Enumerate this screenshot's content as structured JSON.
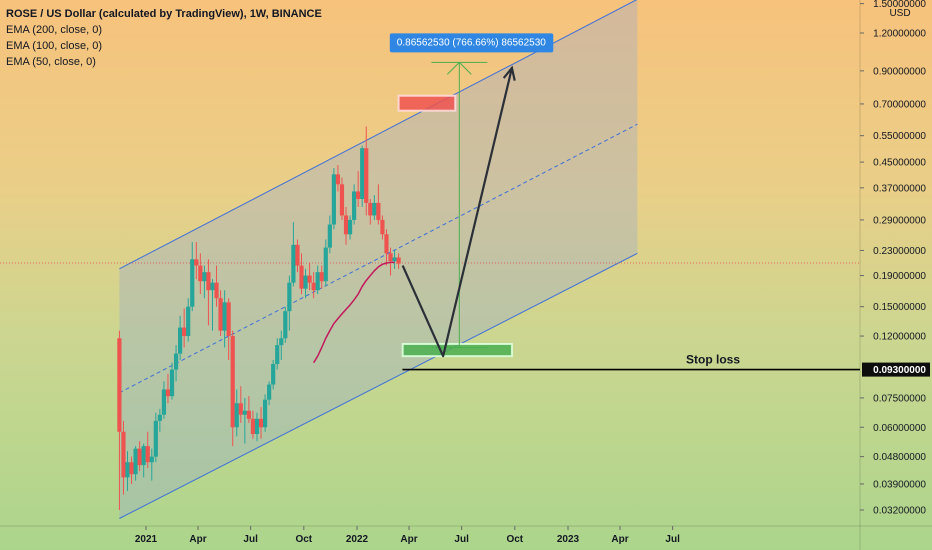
{
  "chart_data": {
    "type": "candlestick",
    "title": "ROSE / US Dollar (calculated by TradingView), 1W, BINANCE",
    "indicators": [
      "EMA (200, close, 0)",
      "EMA (100, close, 0)",
      "EMA (50, close, 0)"
    ],
    "y_unit": "USD",
    "y_scale": "log",
    "y_ticks": [
      {
        "value": 1.5,
        "label": "1.50000000"
      },
      {
        "value": 1.2,
        "label": "1.20000000"
      },
      {
        "value": 0.9,
        "label": "0.90000000"
      },
      {
        "value": 0.7,
        "label": "0.70000000"
      },
      {
        "value": 0.55,
        "label": "0.55000000"
      },
      {
        "value": 0.45,
        "label": "0.45000000"
      },
      {
        "value": 0.37,
        "label": "0.37000000"
      },
      {
        "value": 0.29,
        "label": "0.29000000"
      },
      {
        "value": 0.23,
        "label": "0.23000000"
      },
      {
        "value": 0.19,
        "label": "0.19000000"
      },
      {
        "value": 0.15,
        "label": "0.15000000"
      },
      {
        "value": 0.12,
        "label": "0.12000000"
      },
      {
        "value": 0.075,
        "label": "0.07500000"
      },
      {
        "value": 0.06,
        "label": "0.06000000"
      },
      {
        "value": 0.048,
        "label": "0.04800000"
      },
      {
        "value": 0.039,
        "label": "0.03900000"
      },
      {
        "value": 0.032,
        "label": "0.03200000"
      }
    ],
    "x_ticks": [
      {
        "date": "2021-01-01",
        "label": "2021"
      },
      {
        "date": "2021-04-01",
        "label": "Apr"
      },
      {
        "date": "2021-07-01",
        "label": "Jul"
      },
      {
        "date": "2021-10-01",
        "label": "Oct"
      },
      {
        "date": "2022-01-01",
        "label": "2022"
      },
      {
        "date": "2022-04-01",
        "label": "Apr"
      },
      {
        "date": "2022-07-01",
        "label": "Jul"
      },
      {
        "date": "2022-10-01",
        "label": "Oct"
      },
      {
        "date": "2023-01-01",
        "label": "2023"
      },
      {
        "date": "2023-04-01",
        "label": "Apr"
      },
      {
        "date": "2023-07-01",
        "label": "Jul"
      }
    ],
    "candles": [
      {
        "date": "2020-11-16",
        "o": 0.118,
        "h": 0.125,
        "l": 0.032,
        "c": 0.058
      },
      {
        "date": "2020-11-23",
        "o": 0.058,
        "h": 0.063,
        "l": 0.036,
        "c": 0.041
      },
      {
        "date": "2020-11-30",
        "o": 0.041,
        "h": 0.05,
        "l": 0.037,
        "c": 0.046
      },
      {
        "date": "2020-12-07",
        "o": 0.046,
        "h": 0.048,
        "l": 0.039,
        "c": 0.042
      },
      {
        "date": "2020-12-14",
        "o": 0.042,
        "h": 0.052,
        "l": 0.04,
        "c": 0.051
      },
      {
        "date": "2020-12-21",
        "o": 0.051,
        "h": 0.054,
        "l": 0.043,
        "c": 0.045
      },
      {
        "date": "2020-12-28",
        "o": 0.045,
        "h": 0.053,
        "l": 0.041,
        "c": 0.052
      },
      {
        "date": "2021-01-04",
        "o": 0.052,
        "h": 0.058,
        "l": 0.044,
        "c": 0.046
      },
      {
        "date": "2021-01-11",
        "o": 0.046,
        "h": 0.051,
        "l": 0.04,
        "c": 0.048
      },
      {
        "date": "2021-01-18",
        "o": 0.048,
        "h": 0.067,
        "l": 0.046,
        "c": 0.063
      },
      {
        "date": "2021-01-25",
        "o": 0.063,
        "h": 0.069,
        "l": 0.058,
        "c": 0.066
      },
      {
        "date": "2021-02-01",
        "o": 0.066,
        "h": 0.085,
        "l": 0.064,
        "c": 0.08
      },
      {
        "date": "2021-02-08",
        "o": 0.08,
        "h": 0.09,
        "l": 0.072,
        "c": 0.076
      },
      {
        "date": "2021-02-15",
        "o": 0.076,
        "h": 0.098,
        "l": 0.074,
        "c": 0.093
      },
      {
        "date": "2021-02-22",
        "o": 0.093,
        "h": 0.112,
        "l": 0.085,
        "c": 0.105
      },
      {
        "date": "2021-03-01",
        "o": 0.105,
        "h": 0.14,
        "l": 0.1,
        "c": 0.128
      },
      {
        "date": "2021-03-08",
        "o": 0.128,
        "h": 0.148,
        "l": 0.11,
        "c": 0.12
      },
      {
        "date": "2021-03-15",
        "o": 0.12,
        "h": 0.16,
        "l": 0.115,
        "c": 0.15
      },
      {
        "date": "2021-03-22",
        "o": 0.15,
        "h": 0.245,
        "l": 0.145,
        "c": 0.215
      },
      {
        "date": "2021-03-29",
        "o": 0.215,
        "h": 0.245,
        "l": 0.185,
        "c": 0.205
      },
      {
        "date": "2021-04-05",
        "o": 0.205,
        "h": 0.225,
        "l": 0.165,
        "c": 0.182
      },
      {
        "date": "2021-04-12",
        "o": 0.182,
        "h": 0.205,
        "l": 0.16,
        "c": 0.195
      },
      {
        "date": "2021-04-19",
        "o": 0.195,
        "h": 0.215,
        "l": 0.13,
        "c": 0.17
      },
      {
        "date": "2021-04-26",
        "o": 0.17,
        "h": 0.185,
        "l": 0.125,
        "c": 0.18
      },
      {
        "date": "2021-05-03",
        "o": 0.18,
        "h": 0.205,
        "l": 0.15,
        "c": 0.16
      },
      {
        "date": "2021-05-10",
        "o": 0.16,
        "h": 0.17,
        "l": 0.12,
        "c": 0.125
      },
      {
        "date": "2021-05-17",
        "o": 0.125,
        "h": 0.17,
        "l": 0.11,
        "c": 0.155
      },
      {
        "date": "2021-05-24",
        "o": 0.155,
        "h": 0.16,
        "l": 0.1,
        "c": 0.12
      },
      {
        "date": "2021-05-31",
        "o": 0.12,
        "h": 0.125,
        "l": 0.052,
        "c": 0.06
      },
      {
        "date": "2021-06-07",
        "o": 0.06,
        "h": 0.08,
        "l": 0.056,
        "c": 0.072
      },
      {
        "date": "2021-06-14",
        "o": 0.072,
        "h": 0.082,
        "l": 0.062,
        "c": 0.066
      },
      {
        "date": "2021-06-21",
        "o": 0.066,
        "h": 0.075,
        "l": 0.053,
        "c": 0.068
      },
      {
        "date": "2021-06-28",
        "o": 0.068,
        "h": 0.076,
        "l": 0.062,
        "c": 0.064
      },
      {
        "date": "2021-07-05",
        "o": 0.064,
        "h": 0.068,
        "l": 0.055,
        "c": 0.057
      },
      {
        "date": "2021-07-12",
        "o": 0.057,
        "h": 0.067,
        "l": 0.054,
        "c": 0.064
      },
      {
        "date": "2021-07-19",
        "o": 0.064,
        "h": 0.07,
        "l": 0.055,
        "c": 0.06
      },
      {
        "date": "2021-07-26",
        "o": 0.06,
        "h": 0.077,
        "l": 0.058,
        "c": 0.074
      },
      {
        "date": "2021-08-02",
        "o": 0.074,
        "h": 0.085,
        "l": 0.071,
        "c": 0.083
      },
      {
        "date": "2021-08-09",
        "o": 0.083,
        "h": 0.1,
        "l": 0.08,
        "c": 0.097
      },
      {
        "date": "2021-08-16",
        "o": 0.097,
        "h": 0.118,
        "l": 0.093,
        "c": 0.112
      },
      {
        "date": "2021-08-23",
        "o": 0.112,
        "h": 0.125,
        "l": 0.1,
        "c": 0.118
      },
      {
        "date": "2021-08-30",
        "o": 0.118,
        "h": 0.15,
        "l": 0.114,
        "c": 0.145
      },
      {
        "date": "2021-09-06",
        "o": 0.145,
        "h": 0.19,
        "l": 0.125,
        "c": 0.18
      },
      {
        "date": "2021-09-13",
        "o": 0.18,
        "h": 0.285,
        "l": 0.175,
        "c": 0.24
      },
      {
        "date": "2021-09-20",
        "o": 0.24,
        "h": 0.25,
        "l": 0.195,
        "c": 0.205
      },
      {
        "date": "2021-09-27",
        "o": 0.205,
        "h": 0.225,
        "l": 0.165,
        "c": 0.172
      },
      {
        "date": "2021-10-04",
        "o": 0.172,
        "h": 0.2,
        "l": 0.16,
        "c": 0.19
      },
      {
        "date": "2021-10-11",
        "o": 0.19,
        "h": 0.21,
        "l": 0.17,
        "c": 0.18
      },
      {
        "date": "2021-10-18",
        "o": 0.18,
        "h": 0.195,
        "l": 0.16,
        "c": 0.17
      },
      {
        "date": "2021-10-25",
        "o": 0.17,
        "h": 0.205,
        "l": 0.165,
        "c": 0.195
      },
      {
        "date": "2021-11-01",
        "o": 0.195,
        "h": 0.205,
        "l": 0.172,
        "c": 0.182
      },
      {
        "date": "2021-11-08",
        "o": 0.182,
        "h": 0.25,
        "l": 0.175,
        "c": 0.235
      },
      {
        "date": "2021-11-15",
        "o": 0.235,
        "h": 0.3,
        "l": 0.225,
        "c": 0.28
      },
      {
        "date": "2021-11-22",
        "o": 0.28,
        "h": 0.43,
        "l": 0.27,
        "c": 0.41
      },
      {
        "date": "2021-11-29",
        "o": 0.41,
        "h": 0.44,
        "l": 0.36,
        "c": 0.38
      },
      {
        "date": "2021-12-06",
        "o": 0.38,
        "h": 0.4,
        "l": 0.29,
        "c": 0.3
      },
      {
        "date": "2021-12-13",
        "o": 0.3,
        "h": 0.32,
        "l": 0.24,
        "c": 0.26
      },
      {
        "date": "2021-12-20",
        "o": 0.26,
        "h": 0.3,
        "l": 0.25,
        "c": 0.29
      },
      {
        "date": "2021-12-27",
        "o": 0.29,
        "h": 0.38,
        "l": 0.28,
        "c": 0.36
      },
      {
        "date": "2022-01-03",
        "o": 0.36,
        "h": 0.42,
        "l": 0.32,
        "c": 0.34
      },
      {
        "date": "2022-01-10",
        "o": 0.34,
        "h": 0.51,
        "l": 0.32,
        "c": 0.5
      },
      {
        "date": "2022-01-17",
        "o": 0.5,
        "h": 0.59,
        "l": 0.3,
        "c": 0.33
      },
      {
        "date": "2022-01-24",
        "o": 0.33,
        "h": 0.34,
        "l": 0.28,
        "c": 0.3
      },
      {
        "date": "2022-01-31",
        "o": 0.3,
        "h": 0.35,
        "l": 0.29,
        "c": 0.33
      },
      {
        "date": "2022-02-07",
        "o": 0.33,
        "h": 0.38,
        "l": 0.28,
        "c": 0.29
      },
      {
        "date": "2022-02-14",
        "o": 0.29,
        "h": 0.3,
        "l": 0.25,
        "c": 0.26
      },
      {
        "date": "2022-02-21",
        "o": 0.26,
        "h": 0.27,
        "l": 0.205,
        "c": 0.225
      },
      {
        "date": "2022-02-28",
        "o": 0.225,
        "h": 0.235,
        "l": 0.19,
        "c": 0.212
      },
      {
        "date": "2022-03-07",
        "o": 0.212,
        "h": 0.23,
        "l": 0.2,
        "c": 0.218
      },
      {
        "date": "2022-03-14",
        "o": 0.218,
        "h": 0.225,
        "l": 0.2,
        "c": 0.208
      }
    ],
    "ema_50": [
      {
        "date": "2021-10-18",
        "v": 0.098
      },
      {
        "date": "2021-10-25",
        "v": 0.103
      },
      {
        "date": "2021-11-01",
        "v": 0.11
      },
      {
        "date": "2021-11-08",
        "v": 0.118
      },
      {
        "date": "2021-11-15",
        "v": 0.125
      },
      {
        "date": "2021-11-22",
        "v": 0.132
      },
      {
        "date": "2021-11-29",
        "v": 0.137
      },
      {
        "date": "2021-12-06",
        "v": 0.142
      },
      {
        "date": "2021-12-13",
        "v": 0.147
      },
      {
        "date": "2021-12-20",
        "v": 0.152
      },
      {
        "date": "2021-12-27",
        "v": 0.158
      },
      {
        "date": "2022-01-03",
        "v": 0.165
      },
      {
        "date": "2022-01-10",
        "v": 0.175
      },
      {
        "date": "2022-01-17",
        "v": 0.183
      },
      {
        "date": "2022-01-24",
        "v": 0.19
      },
      {
        "date": "2022-01-31",
        "v": 0.197
      },
      {
        "date": "2022-02-07",
        "v": 0.203
      },
      {
        "date": "2022-02-14",
        "v": 0.207
      },
      {
        "date": "2022-02-21",
        "v": 0.209
      },
      {
        "date": "2022-02-28",
        "v": 0.21
      },
      {
        "date": "2022-03-07",
        "v": 0.21
      }
    ],
    "channel": {
      "start_date": "2020-11-16",
      "end_date": "2023-05-01",
      "upper": [
        0.2,
        1.55
      ],
      "mid": [
        0.078,
        0.6
      ],
      "lower": [
        0.03,
        0.225
      ]
    },
    "projection_path": [
      {
        "date": "2022-03-21",
        "v": 0.205
      },
      {
        "date": "2022-05-30",
        "v": 0.103
      },
      {
        "date": "2022-09-26",
        "v": 0.92
      }
    ],
    "target_zone": {
      "start": "2022-03-14",
      "end": "2022-06-20",
      "low": 0.665,
      "high": 0.745
    },
    "entry_zone": {
      "start": "2022-03-21",
      "end": "2022-09-26",
      "low": 0.103,
      "high": 0.113
    },
    "measure": {
      "date": "2022-06-27",
      "from": 0.11,
      "to": 0.96
    },
    "stop_loss": {
      "value": 0.093,
      "from_date": "2022-02-14",
      "label": "Stop loss",
      "axis_label": "0.09300000"
    },
    "current_price": 0.209,
    "annotation": "0.86562530 (766.66%) 86562530"
  }
}
